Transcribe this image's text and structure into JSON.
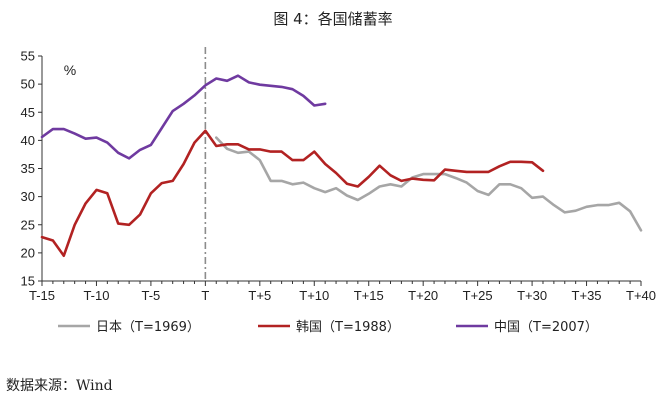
{
  "chart_data": {
    "type": "line",
    "title": "图 4：各国储蓄率",
    "unit_label": "%",
    "source": "数据来源：Wind",
    "x": [
      -15,
      -14,
      -13,
      -12,
      -11,
      -10,
      -9,
      -8,
      -7,
      -6,
      -5,
      -4,
      -3,
      -2,
      -1,
      0,
      1,
      2,
      3,
      4,
      5,
      6,
      7,
      8,
      9,
      10,
      11,
      12,
      13,
      14,
      15,
      16,
      17,
      18,
      19,
      20,
      21,
      22,
      23,
      24,
      25,
      26,
      27,
      28,
      29,
      30,
      31,
      32,
      33,
      34,
      35,
      36,
      37,
      38,
      39,
      40
    ],
    "x_ticks": [
      -15,
      -10,
      -5,
      0,
      5,
      10,
      15,
      20,
      25,
      30,
      35,
      40
    ],
    "x_tick_labels": [
      "T-15",
      "T-10",
      "T-5",
      "T",
      "T+5",
      "T+10",
      "T+15",
      "T+20",
      "T+25",
      "T+30",
      "T+35",
      "T+40"
    ],
    "ylim": [
      15,
      55
    ],
    "y_ticks": [
      15,
      20,
      25,
      30,
      35,
      40,
      45,
      50,
      55
    ],
    "xlim": [
      -15,
      40
    ],
    "reference_line_x": 0,
    "grid": false,
    "legend_position": "bottom",
    "series": [
      {
        "name": "日本（T=1969）",
        "color": "#a6a6a6",
        "x": [
          1,
          2,
          3,
          4,
          5,
          6,
          7,
          8,
          9,
          10,
          11,
          12,
          13,
          14,
          15,
          16,
          17,
          18,
          19,
          20,
          21,
          22,
          23,
          24,
          25,
          26,
          27,
          28,
          29,
          30,
          31,
          32,
          33,
          34,
          35,
          36,
          37,
          38,
          39,
          40
        ],
        "values": [
          40.5,
          38.5,
          37.8,
          38.0,
          36.5,
          32.8,
          32.8,
          32.2,
          32.5,
          31.5,
          30.8,
          31.5,
          30.2,
          29.4,
          30.5,
          31.8,
          32.2,
          31.8,
          33.4,
          34.0,
          34.0,
          34.0,
          33.3,
          32.5,
          31.0,
          30.3,
          32.2,
          32.2,
          31.5,
          29.8,
          30.0,
          28.5,
          27.2,
          27.5,
          28.2,
          28.5,
          28.5,
          28.9,
          27.4,
          24.0
        ]
      },
      {
        "name": "韩国（T=1988）",
        "color": "#b22222",
        "x": [
          -15,
          -14,
          -13,
          -12,
          -11,
          -10,
          -9,
          -8,
          -7,
          -6,
          -5,
          -4,
          -3,
          -2,
          -1,
          0,
          1,
          2,
          3,
          4,
          5,
          6,
          7,
          8,
          9,
          10,
          11,
          12,
          13,
          14,
          15,
          16,
          17,
          18,
          19,
          20,
          21,
          22,
          23,
          24,
          25,
          26,
          27,
          28,
          29,
          30,
          31
        ],
        "values": [
          22.8,
          22.2,
          19.5,
          25.0,
          28.8,
          31.2,
          30.6,
          25.2,
          25.0,
          26.8,
          30.6,
          32.4,
          32.8,
          35.8,
          39.6,
          41.7,
          39.0,
          39.3,
          39.3,
          38.4,
          38.4,
          38.0,
          38.0,
          36.5,
          36.5,
          38.0,
          35.8,
          34.2,
          32.3,
          31.8,
          33.5,
          35.5,
          33.8,
          32.8,
          33.2,
          33.0,
          32.9,
          34.8,
          34.6,
          34.4,
          34.4,
          34.4,
          35.4,
          36.2,
          36.2,
          36.1,
          34.6
        ]
      },
      {
        "name": "中国（T=2007）",
        "color": "#6f3aa0",
        "x": [
          -15,
          -14,
          -13,
          -12,
          -11,
          -10,
          -9,
          -8,
          -7,
          -6,
          -5,
          -4,
          -3,
          -2,
          -1,
          0,
          1,
          2,
          3,
          4,
          5,
          6,
          7,
          8,
          9,
          10,
          11
        ],
        "values": [
          40.6,
          42.0,
          42.0,
          41.2,
          40.3,
          40.5,
          39.6,
          37.8,
          36.8,
          38.3,
          39.2,
          42.2,
          45.2,
          46.5,
          48.0,
          49.8,
          51.0,
          50.6,
          51.5,
          50.3,
          49.9,
          49.7,
          49.5,
          49.1,
          47.9,
          46.2,
          46.5
        ]
      }
    ]
  }
}
